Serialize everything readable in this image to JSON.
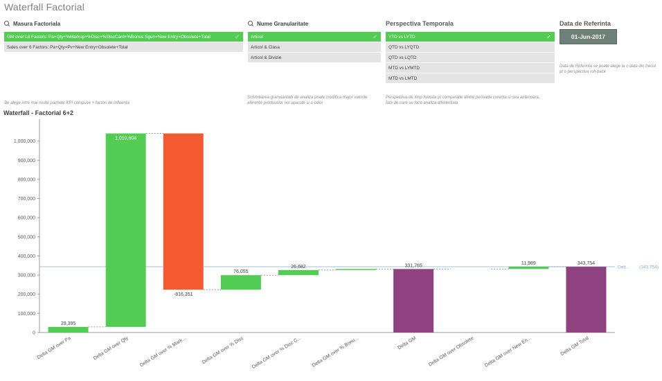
{
  "app": {
    "title": "Waterfall Factorial"
  },
  "masura": {
    "title": "Masura Factoriala",
    "items": [
      {
        "label": "GM over L8 Factors: Pa+Qty+%Markup+%Disc+%DiscCard+%Bonus Sgun+New Entry+Obsolete+Total",
        "selected": true
      },
      {
        "label": "Sales over 6 Factors: Pa+Qty=Pv+New Entry+Obsolete+Total",
        "selected": false
      }
    ],
    "note": "Se alege intre mai multe pachete KPI compuse + factori de influenta"
  },
  "granularitate": {
    "title": "Nume Granularitate",
    "items": [
      {
        "label": "Articol",
        "selected": true
      },
      {
        "label": "Articol & Clasa",
        "selected": false
      },
      {
        "label": "Articol & Divizie",
        "selected": false
      }
    ],
    "note": "Schimbarea granularitatii de analiza poate modifica major valorile aferente produselor noi aparute si a celor"
  },
  "perspectiva": {
    "title": "Perspectiva Temporala",
    "items": [
      {
        "label": "YTD vs LYTD",
        "selected": true
      },
      {
        "label": "QTD vs LYQTD",
        "selected": false
      },
      {
        "label": "QTD vs LQTD",
        "selected": false
      },
      {
        "label": "MTD vs LYMTD",
        "selected": false
      },
      {
        "label": "MTD vs LMTD",
        "selected": false
      }
    ],
    "note": "Perspectiva de timp folosita pt comparatie dintre perioada curenta si cea anterioara, fata de care se face analiza diferentiala"
  },
  "data_ref": {
    "title": "Data de Referinta",
    "value": "01-Jun-2017",
    "note": "Data de Referinta se poate alege la o data din trecut pt o perspectiva roll-back"
  },
  "chart_title": "Waterfall - Factorial 6+2",
  "chart_data": {
    "type": "waterfall",
    "ylim": [
      0,
      1100000
    ],
    "yticks": [
      0,
      100000,
      200000,
      300000,
      400000,
      500000,
      600000,
      700000,
      800000,
      900000,
      1000000
    ],
    "ytick_labels": [
      "0",
      "100,000",
      "200,000",
      "300,000",
      "400,000",
      "500,000",
      "600,000",
      "700,000",
      "800,000",
      "900,000",
      "1,000,000"
    ],
    "reference_line": {
      "value": 343754,
      "label": "Delt...",
      "value_label": "(343,754)"
    },
    "colors": {
      "increase": "#52cc52",
      "decrease": "#f45a32",
      "total": "#8e4380"
    },
    "bars": [
      {
        "category": "Delta GM over Pa",
        "start": 0,
        "end": 29395,
        "label": "29,395",
        "kind": "increase"
      },
      {
        "category": "Delta GM over Qty",
        "start": 29395,
        "end": 1040000,
        "label": "1,010,604",
        "kind": "increase"
      },
      {
        "category": "Delta GM over % Mark...",
        "start": 1040000,
        "end": 223649,
        "label": "-816,351",
        "kind": "decrease"
      },
      {
        "category": "Delta GM over % Disc",
        "start": 223649,
        "end": 299704,
        "label": "76,055",
        "kind": "increase"
      },
      {
        "category": "Delta GM over % Disc C...",
        "start": 299704,
        "end": 326386,
        "label": "26,682",
        "kind": "increase"
      },
      {
        "category": "Delta GM over % Bonu...",
        "start": 326386,
        "end": 331765,
        "label": "",
        "kind": "increase"
      },
      {
        "category": "Delta GM",
        "start": 0,
        "end": 331765,
        "label": "331,765",
        "kind": "total"
      },
      {
        "category": "Delta GM over Obsolete",
        "start": 331765,
        "end": 331765,
        "label": "",
        "kind": "increase"
      },
      {
        "category": "Delta GM over New En...",
        "start": 331765,
        "end": 343754,
        "label": "11,989",
        "kind": "increase"
      },
      {
        "category": "Delta GM Total",
        "start": 0,
        "end": 343754,
        "label": "343,754",
        "kind": "total"
      }
    ]
  }
}
